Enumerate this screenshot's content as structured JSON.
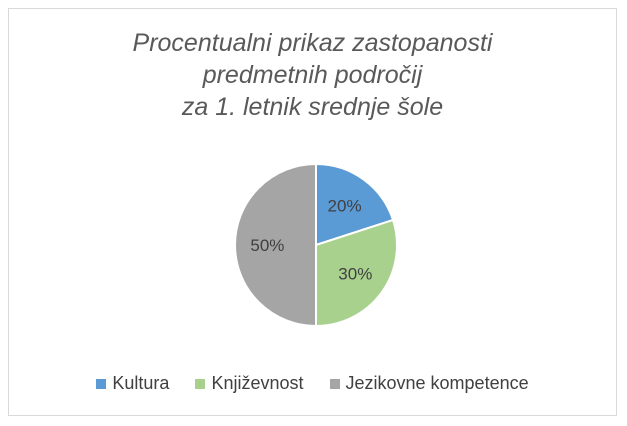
{
  "chart_data": {
    "type": "pie",
    "title": "Procentualni prikaz zastopanosti\npredmetnih področij\nza 1. letnik srednje šole",
    "categories": [
      "Kultura",
      "Književnost",
      "Jezikovne kompetence"
    ],
    "values": [
      20,
      30,
      50
    ],
    "data_labels": [
      "20%",
      "30%",
      "50%"
    ],
    "colors": [
      "#5b9bd5",
      "#a9d18e",
      "#a5a5a5"
    ],
    "legend_position": "bottom"
  }
}
